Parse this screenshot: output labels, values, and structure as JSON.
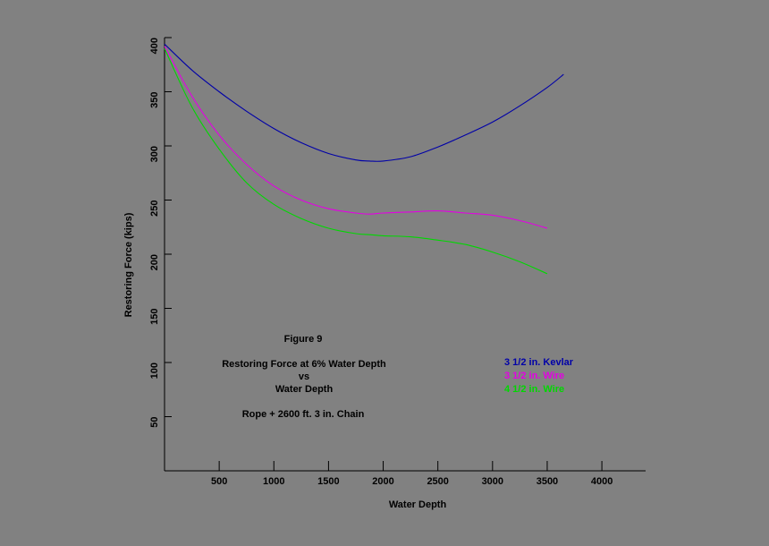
{
  "chart_data": {
    "type": "line",
    "title": "Figure 9",
    "subtitle_lines": [
      "Restoring Force at 6% Water Depth",
      "vs",
      "Water Depth"
    ],
    "note": "Rope + 2600 ft.  3 in. Chain",
    "xlabel": "Water Depth",
    "ylabel": "Restoring Force (kips)",
    "xlim": [
      0,
      4400
    ],
    "ylim": [
      0,
      400
    ],
    "x_ticks": [
      500,
      1000,
      1500,
      2000,
      2500,
      3000,
      3500,
      4000
    ],
    "y_ticks": [
      50,
      100,
      150,
      200,
      250,
      300,
      350,
      400
    ],
    "grid": false,
    "legend_position": "right-middle",
    "series": [
      {
        "name": "3 1/2 in. Kevlar",
        "color": "#0000a8",
        "x": [
          0,
          250,
          500,
          750,
          1000,
          1250,
          1500,
          1750,
          1875,
          2000,
          2250,
          2500,
          2750,
          3000,
          3250,
          3500,
          3650
        ],
        "y": [
          394,
          370,
          350,
          332,
          316,
          303,
          293,
          287,
          286,
          286,
          290,
          299,
          310,
          322,
          337,
          354,
          366
        ]
      },
      {
        "name": "3 1/2 in. Wire",
        "color": "#e400e4",
        "x": [
          0,
          250,
          500,
          750,
          1000,
          1250,
          1500,
          1750,
          1875,
          2000,
          2250,
          2500,
          2750,
          3000,
          3250,
          3500
        ],
        "y": [
          392,
          346,
          310,
          283,
          263,
          250,
          242,
          238,
          237,
          238,
          239,
          240,
          238,
          236,
          231,
          224
        ]
      },
      {
        "name": "4 1/2 in. Wire",
        "color": "#00d800",
        "x": [
          0,
          250,
          500,
          750,
          1000,
          1250,
          1500,
          1750,
          1875,
          2000,
          2250,
          2500,
          2750,
          3000,
          3250,
          3500
        ],
        "y": [
          390,
          336,
          297,
          266,
          246,
          233,
          224,
          219,
          218,
          217,
          216,
          213,
          209,
          202,
          193,
          182
        ]
      }
    ]
  }
}
